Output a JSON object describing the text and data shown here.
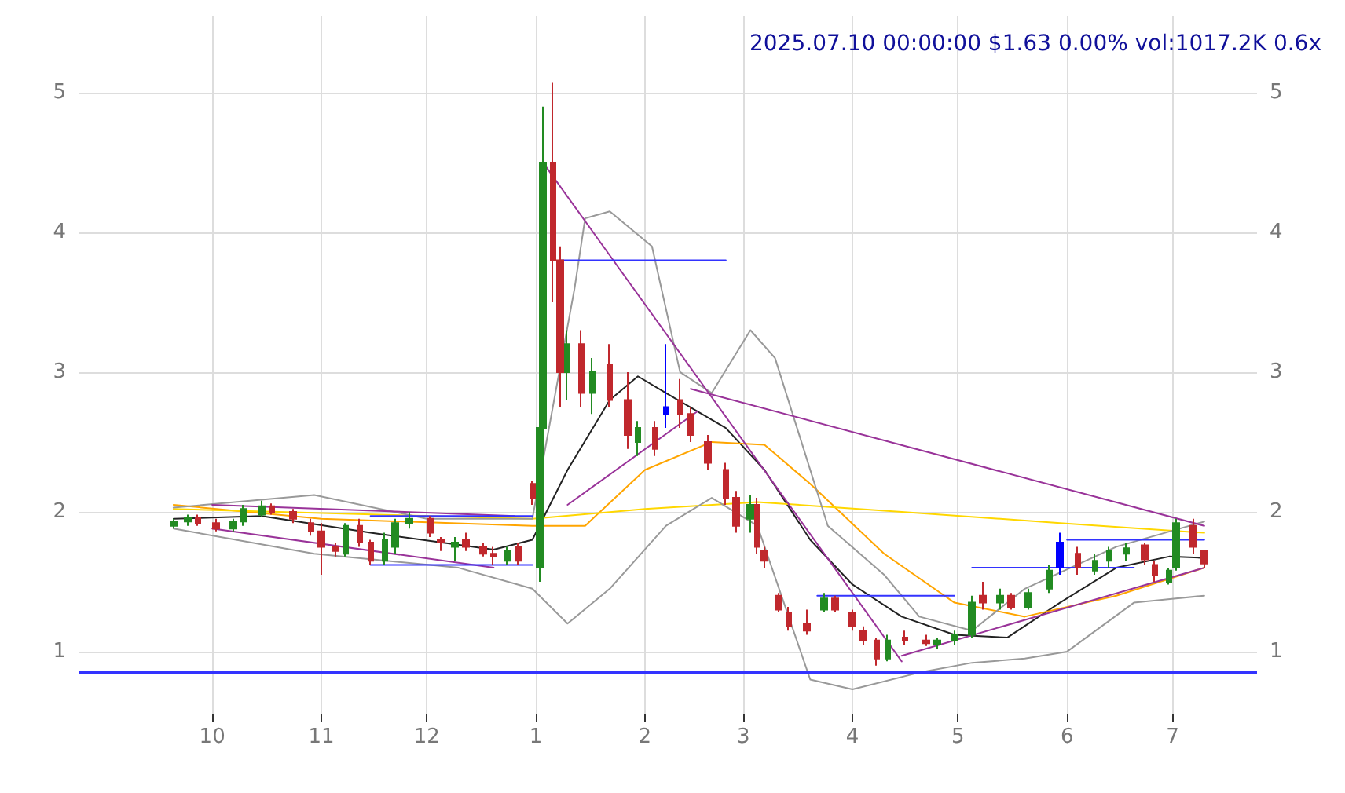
{
  "chart_data": {
    "type": "candlestick",
    "title": "2025.07.10 00:00:00 $1.63 0.00% vol:1017.2K 0.6x",
    "x": [
      "2024-09-20",
      "2024-09-24",
      "2024-09-27",
      "2024-10-02",
      "2024-10-07",
      "2024-10-10",
      "2024-10-15",
      "2024-10-18",
      "2024-10-24",
      "2024-10-29",
      "2024-11-01",
      "2024-11-05",
      "2024-11-08",
      "2024-11-12",
      "2024-11-15",
      "2024-11-19",
      "2024-11-22",
      "2024-11-26",
      "2024-12-02",
      "2024-12-05",
      "2024-12-09",
      "2024-12-12",
      "2024-12-17",
      "2024-12-20",
      "2024-12-24",
      "2024-12-27",
      "2024-12-31",
      "2025-01-02",
      "2025-01-03",
      "2025-01-06",
      "2025-01-08",
      "2025-01-10",
      "2025-01-14",
      "2025-01-17",
      "2025-01-22",
      "2025-01-27",
      "2025-01-30",
      "2025-02-04",
      "2025-02-07",
      "2025-02-11",
      "2025-02-14",
      "2025-02-19",
      "2025-02-24",
      "2025-02-27",
      "2025-03-03",
      "2025-03-05",
      "2025-03-07",
      "2025-03-11",
      "2025-03-14",
      "2025-03-19",
      "2025-03-24",
      "2025-03-27",
      "2025-04-01",
      "2025-04-04",
      "2025-04-08",
      "2025-04-11",
      "2025-04-16",
      "2025-04-22",
      "2025-04-25",
      "2025-04-30",
      "2025-05-05",
      "2025-05-08",
      "2025-05-13",
      "2025-05-16",
      "2025-05-21",
      "2025-05-27",
      "2025-05-30",
      "2025-06-04",
      "2025-06-09",
      "2025-06-13",
      "2025-06-18",
      "2025-06-23",
      "2025-06-26",
      "2025-06-30",
      "2025-07-02",
      "2025-07-07",
      "2025-07-10"
    ],
    "ohlc": [
      [
        1.9,
        1.95,
        1.88,
        1.93
      ],
      [
        1.93,
        1.98,
        1.9,
        1.96
      ],
      [
        1.96,
        1.98,
        1.9,
        1.92
      ],
      [
        1.92,
        1.95,
        1.86,
        1.88
      ],
      [
        1.88,
        1.95,
        1.86,
        1.93
      ],
      [
        1.93,
        2.05,
        1.9,
        2.02
      ],
      [
        1.98,
        2.08,
        1.96,
        2.04
      ],
      [
        2.04,
        2.06,
        1.98,
        2.0
      ],
      [
        2.0,
        2.02,
        1.92,
        1.95
      ],
      [
        1.92,
        1.95,
        1.83,
        1.86
      ],
      [
        1.86,
        1.92,
        1.55,
        1.75
      ],
      [
        1.75,
        1.78,
        1.68,
        1.72
      ],
      [
        1.7,
        1.92,
        1.68,
        1.9
      ],
      [
        1.9,
        1.95,
        1.75,
        1.78
      ],
      [
        1.78,
        1.8,
        1.62,
        1.65
      ],
      [
        1.65,
        1.85,
        1.62,
        1.8
      ],
      [
        1.75,
        1.95,
        1.7,
        1.92
      ],
      [
        1.92,
        2.0,
        1.88,
        1.95
      ],
      [
        1.95,
        1.97,
        1.82,
        1.85
      ],
      [
        1.8,
        1.82,
        1.72,
        1.78
      ],
      [
        1.75,
        1.82,
        1.65,
        1.78
      ],
      [
        1.8,
        1.85,
        1.72,
        1.75
      ],
      [
        1.75,
        1.78,
        1.68,
        1.7
      ],
      [
        1.7,
        1.75,
        1.62,
        1.68
      ],
      [
        1.65,
        1.75,
        1.62,
        1.72
      ],
      [
        1.75,
        1.78,
        1.62,
        1.65
      ],
      [
        2.2,
        2.22,
        2.05,
        2.1
      ],
      [
        1.6,
        2.7,
        1.5,
        2.6
      ],
      [
        2.6,
        4.9,
        2.0,
        4.5
      ],
      [
        4.5,
        5.07,
        3.5,
        3.8
      ],
      [
        3.8,
        3.9,
        2.75,
        3.0
      ],
      [
        3.0,
        3.3,
        2.8,
        3.2
      ],
      [
        3.2,
        3.3,
        2.75,
        2.85
      ],
      [
        2.85,
        3.1,
        2.7,
        3.0
      ],
      [
        3.05,
        3.2,
        2.75,
        2.8
      ],
      [
        2.8,
        3.0,
        2.45,
        2.55
      ],
      [
        2.5,
        2.65,
        2.4,
        2.6
      ],
      [
        2.6,
        2.65,
        2.4,
        2.45
      ],
      [
        2.7,
        3.2,
        2.6,
        2.75
      ],
      [
        2.8,
        2.95,
        2.6,
        2.7
      ],
      [
        2.7,
        2.75,
        2.5,
        2.55
      ],
      [
        2.5,
        2.55,
        2.3,
        2.35
      ],
      [
        2.3,
        2.35,
        2.05,
        2.1
      ],
      [
        2.1,
        2.15,
        1.85,
        1.9
      ],
      [
        1.95,
        2.12,
        1.85,
        2.05
      ],
      [
        2.05,
        2.1,
        1.7,
        1.75
      ],
      [
        1.72,
        1.75,
        1.6,
        1.65
      ],
      [
        1.4,
        1.42,
        1.28,
        1.3
      ],
      [
        1.28,
        1.32,
        1.15,
        1.18
      ],
      [
        1.2,
        1.3,
        1.12,
        1.15
      ],
      [
        1.3,
        1.42,
        1.28,
        1.38
      ],
      [
        1.38,
        1.4,
        1.28,
        1.3
      ],
      [
        1.28,
        1.3,
        1.15,
        1.18
      ],
      [
        1.15,
        1.18,
        1.05,
        1.08
      ],
      [
        1.08,
        1.1,
        0.9,
        0.95
      ],
      [
        0.95,
        1.12,
        0.93,
        1.08
      ],
      [
        1.1,
        1.15,
        1.05,
        1.08
      ],
      [
        1.08,
        1.12,
        1.04,
        1.06
      ],
      [
        1.05,
        1.1,
        1.02,
        1.08
      ],
      [
        1.08,
        1.15,
        1.05,
        1.12
      ],
      [
        1.12,
        1.4,
        1.1,
        1.35
      ],
      [
        1.4,
        1.5,
        1.3,
        1.35
      ],
      [
        1.35,
        1.45,
        1.3,
        1.4
      ],
      [
        1.4,
        1.42,
        1.3,
        1.32
      ],
      [
        1.32,
        1.45,
        1.3,
        1.42
      ],
      [
        1.45,
        1.62,
        1.42,
        1.58
      ],
      [
        1.6,
        1.85,
        1.55,
        1.78
      ],
      [
        1.7,
        1.75,
        1.55,
        1.6
      ],
      [
        1.58,
        1.7,
        1.55,
        1.65
      ],
      [
        1.65,
        1.75,
        1.6,
        1.72
      ],
      [
        1.7,
        1.78,
        1.65,
        1.74
      ],
      [
        1.76,
        1.78,
        1.62,
        1.66
      ],
      [
        1.62,
        1.65,
        1.5,
        1.55
      ],
      [
        1.5,
        1.6,
        1.48,
        1.58
      ],
      [
        1.6,
        1.95,
        1.58,
        1.92
      ],
      [
        1.9,
        1.95,
        1.7,
        1.75
      ],
      [
        1.72,
        1.72,
        1.6,
        1.63
      ]
    ],
    "colors": [
      "#228b22",
      "#228b22",
      "#c0282d",
      "#c0282d",
      "#228b22",
      "#228b22",
      "#228b22",
      "#c0282d",
      "#c0282d",
      "#c0282d",
      "#c0282d",
      "#c0282d",
      "#228b22",
      "#c0282d",
      "#c0282d",
      "#228b22",
      "#228b22",
      "#228b22",
      "#c0282d",
      "#c0282d",
      "#228b22",
      "#c0282d",
      "#c0282d",
      "#c0282d",
      "#228b22",
      "#c0282d",
      "#c0282d",
      "#228b22",
      "#228b22",
      "#c0282d",
      "#c0282d",
      "#228b22",
      "#c0282d",
      "#228b22",
      "#c0282d",
      "#c0282d",
      "#228b22",
      "#c0282d",
      "#0000ff",
      "#c0282d",
      "#c0282d",
      "#c0282d",
      "#c0282d",
      "#c0282d",
      "#228b22",
      "#c0282d",
      "#c0282d",
      "#c0282d",
      "#c0282d",
      "#c0282d",
      "#228b22",
      "#c0282d",
      "#c0282d",
      "#c0282d",
      "#c0282d",
      "#228b22",
      "#c0282d",
      "#c0282d",
      "#228b22",
      "#228b22",
      "#228b22",
      "#c0282d",
      "#228b22",
      "#c0282d",
      "#228b22",
      "#228b22",
      "#0000ff",
      "#c0282d",
      "#228b22",
      "#228b22",
      "#228b22",
      "#c0282d",
      "#c0282d",
      "#228b22",
      "#228b22",
      "#c0282d",
      "#c0282d"
    ],
    "series": [
      {
        "type": "line",
        "color": "#222222",
        "x": [
          "2024-09-20",
          "2024-10-15",
          "2024-11-15",
          "2024-12-20",
          "2024-12-31",
          "2025-01-10",
          "2025-01-22",
          "2025-01-30",
          "2025-02-07",
          "2025-02-24",
          "2025-03-07",
          "2025-03-20",
          "2025-04-01",
          "2025-04-15",
          "2025-04-30",
          "2025-05-15",
          "2025-05-30",
          "2025-06-15",
          "2025-06-30",
          "2025-07-10"
        ],
        "values": [
          1.95,
          1.97,
          1.85,
          1.73,
          1.8,
          2.3,
          2.8,
          2.97,
          2.85,
          2.6,
          2.3,
          1.8,
          1.48,
          1.25,
          1.12,
          1.1,
          1.35,
          1.6,
          1.68,
          1.67
        ]
      },
      {
        "type": "line",
        "color": "#ffa500",
        "x": [
          "2024-09-20",
          "2024-11-01",
          "2024-12-31",
          "2025-01-15",
          "2025-02-01",
          "2025-02-20",
          "2025-03-07",
          "2025-03-20",
          "2025-04-10",
          "2025-04-30",
          "2025-05-20",
          "2025-06-15",
          "2025-07-10"
        ],
        "values": [
          2.05,
          1.95,
          1.9,
          1.9,
          2.3,
          2.5,
          2.48,
          2.2,
          1.7,
          1.35,
          1.25,
          1.4,
          1.6
        ]
      },
      {
        "type": "line",
        "color": "#ffd700",
        "x": [
          "2024-09-20",
          "2024-12-31",
          "2025-02-01",
          "2025-03-05",
          "2025-04-15",
          "2025-05-30",
          "2025-07-10"
        ],
        "values": [
          2.02,
          1.95,
          2.02,
          2.07,
          2.0,
          1.92,
          1.85
        ]
      },
      {
        "type": "line",
        "color": "#999999",
        "x": [
          "2024-09-20",
          "2024-10-30",
          "2024-12-01",
          "2024-12-31",
          "2025-01-12",
          "2025-01-15",
          "2025-01-22",
          "2025-02-03",
          "2025-02-11",
          "2025-02-20",
          "2025-03-03",
          "2025-03-10",
          "2025-03-25",
          "2025-04-10",
          "2025-04-20",
          "2025-05-05",
          "2025-05-20",
          "2025-06-15",
          "2025-07-10"
        ],
        "values": [
          2.03,
          2.12,
          1.95,
          1.95,
          3.6,
          4.1,
          4.15,
          3.9,
          3.0,
          2.85,
          3.3,
          3.1,
          1.9,
          1.55,
          1.25,
          1.15,
          1.45,
          1.75,
          1.93
        ]
      },
      {
        "type": "line",
        "color": "#999999",
        "x": [
          "2024-09-20",
          "2024-10-30",
          "2024-12-10",
          "2024-12-31",
          "2025-01-10",
          "2025-01-22",
          "2025-02-07",
          "2025-02-20",
          "2025-03-05",
          "2025-03-20",
          "2025-04-01",
          "2025-04-20",
          "2025-05-05",
          "2025-05-20",
          "2025-06-01",
          "2025-06-20",
          "2025-07-10"
        ],
        "values": [
          1.88,
          1.7,
          1.6,
          1.45,
          1.2,
          1.45,
          1.9,
          2.1,
          1.9,
          0.8,
          0.73,
          0.85,
          0.92,
          0.95,
          1.0,
          1.35,
          1.4
        ]
      },
      {
        "type": "line",
        "color": "#993399",
        "x": [
          "2024-10-01",
          "2024-12-26"
        ],
        "values": [
          2.05,
          1.97
        ]
      },
      {
        "type": "line",
        "color": "#993399",
        "x": [
          "2024-10-01",
          "2024-12-20"
        ],
        "values": [
          1.88,
          1.6
        ]
      },
      {
        "type": "line",
        "color": "#993399",
        "x": [
          "2025-01-10",
          "2025-02-16"
        ],
        "values": [
          2.05,
          2.72
        ]
      },
      {
        "type": "line",
        "color": "#993399",
        "x": [
          "2025-01-03",
          "2025-04-15"
        ],
        "values": [
          4.5,
          0.93
        ]
      },
      {
        "type": "line",
        "color": "#993399",
        "x": [
          "2025-02-14",
          "2025-07-10"
        ],
        "values": [
          2.88,
          1.9
        ]
      },
      {
        "type": "line",
        "color": "#993399",
        "x": [
          "2025-04-15",
          "2025-07-10"
        ],
        "values": [
          0.97,
          1.6
        ]
      },
      {
        "type": "line",
        "color": "#3333ff",
        "x": [
          "2025-01-08",
          "2025-02-24"
        ],
        "values": [
          3.8,
          3.8
        ]
      },
      {
        "type": "line",
        "color": "#3333ff",
        "x": [
          "2024-11-15",
          "2024-12-31"
        ],
        "values": [
          1.97,
          1.97
        ]
      },
      {
        "type": "line",
        "color": "#3333ff",
        "x": [
          "2024-11-15",
          "2024-12-31"
        ],
        "values": [
          1.62,
          1.62
        ]
      },
      {
        "type": "line",
        "color": "#3333ff",
        "x": [
          "2025-03-22",
          "2025-04-30"
        ],
        "values": [
          1.4,
          1.4
        ]
      },
      {
        "type": "line",
        "color": "#3333ff",
        "x": [
          "2025-05-05",
          "2025-06-20"
        ],
        "values": [
          1.6,
          1.6
        ]
      },
      {
        "type": "line",
        "color": "#3333ff",
        "x": [
          "2025-06-01",
          "2025-07-10"
        ],
        "values": [
          1.8,
          1.8
        ]
      }
    ],
    "ref_lines": [
      {
        "axis": "y",
        "value": 0.86,
        "color": "#3333ff"
      }
    ],
    "xlim": [
      "2024-08-24",
      "2025-07-25"
    ],
    "xticks": [
      {
        "value": "2024-10-01",
        "label": "10"
      },
      {
        "value": "2024-11-01",
        "label": "11"
      },
      {
        "value": "2024-12-01",
        "label": "12"
      },
      {
        "value": "2025-01-01",
        "label": "1"
      },
      {
        "value": "2025-02-01",
        "label": "2"
      },
      {
        "value": "2025-03-01",
        "label": "3"
      },
      {
        "value": "2025-04-01",
        "label": "4"
      },
      {
        "value": "2025-05-01",
        "label": "5"
      },
      {
        "value": "2025-06-01",
        "label": "6"
      },
      {
        "value": "2025-07-01",
        "label": "7"
      }
    ],
    "ylim": [
      0.55,
      5.55
    ],
    "yticks": [
      1,
      2,
      3,
      4,
      5
    ],
    "y2lim": [
      0.55,
      5.55
    ],
    "y2ticks": [
      1,
      2,
      3,
      4,
      5
    ],
    "grid": true
  }
}
